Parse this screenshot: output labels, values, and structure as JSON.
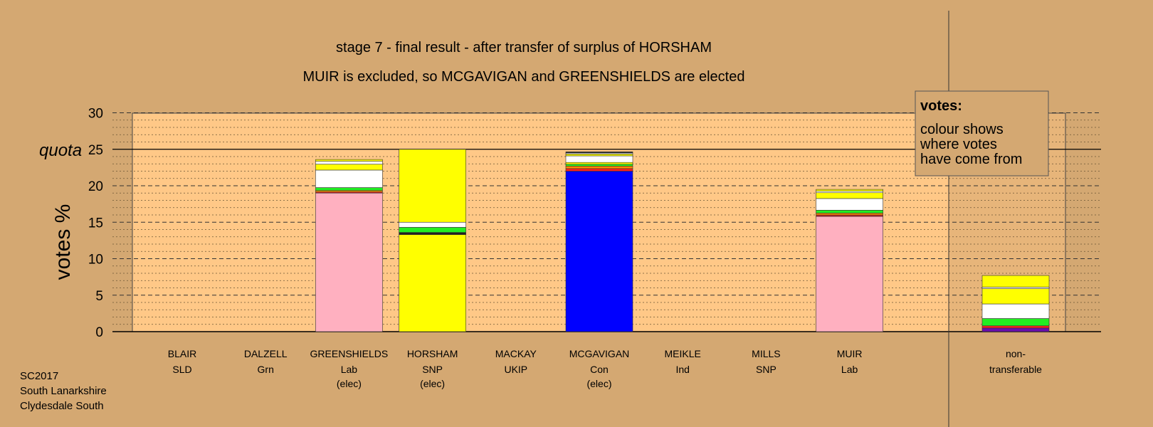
{
  "chart_data": {
    "type": "bar",
    "title": "stage 7 - final result - after transfer of surplus of HORSHAM",
    "subtitle": "MUIR is excluded, so MCGAVIGAN and GREENSHIELDS are elected",
    "ylabel": "votes %",
    "ylim": [
      0,
      30
    ],
    "yticks": [
      0,
      5,
      10,
      15,
      20,
      25,
      30
    ],
    "quota": 25,
    "quota_label": "quota",
    "grid": true,
    "legend_box": {
      "title": "votes:",
      "lines": [
        "colour shows",
        "where votes",
        "have come from"
      ]
    },
    "categories": [
      {
        "name": "BLAIR",
        "party": "SLD",
        "note": "",
        "segments": []
      },
      {
        "name": "DALZELL",
        "party": "Grn",
        "note": "",
        "segments": []
      },
      {
        "name": "GREENSHIELDS",
        "party": "Lab",
        "note": "(elec)",
        "segments": [
          {
            "color": "#ffb0c0",
            "value": 19.0
          },
          {
            "color": "#cc2020",
            "value": 0.15
          },
          {
            "color": "#ff8800",
            "value": 0.2
          },
          {
            "color": "#22ee22",
            "value": 0.4
          },
          {
            "color": "#ffffff",
            "value": 2.4
          },
          {
            "color": "#ffff00",
            "value": 0.8
          },
          {
            "color": "#ffffff",
            "value": 0.4
          },
          {
            "color": "#ffff00",
            "value": 0.25
          }
        ]
      },
      {
        "name": "HORSHAM",
        "party": "SNP",
        "note": "(elec)",
        "segments": [
          {
            "color": "#ffff00",
            "value": 13.3
          },
          {
            "color": "#222222",
            "value": 0.3
          },
          {
            "color": "#22ee22",
            "value": 0.7
          },
          {
            "color": "#ffffff",
            "value": 0.7
          },
          {
            "color": "#ffff00",
            "value": 10.0
          }
        ]
      },
      {
        "name": "MACKAY",
        "party": "UKIP",
        "note": "",
        "segments": []
      },
      {
        "name": "MCGAVIGAN",
        "party": "Con",
        "note": "(elec)",
        "segments": [
          {
            "color": "#0000ff",
            "value": 22.0
          },
          {
            "color": "#ff2020",
            "value": 0.35
          },
          {
            "color": "#ff8800",
            "value": 0.35
          },
          {
            "color": "#22ee22",
            "value": 0.25
          },
          {
            "color": "#ffff00",
            "value": 0.25
          },
          {
            "color": "#ffffff",
            "value": 0.9
          },
          {
            "color": "#ffff00",
            "value": 0.25
          },
          {
            "color": "#ffffff",
            "value": 0.15
          },
          {
            "color": "#222222",
            "value": 0.15
          }
        ]
      },
      {
        "name": "MEIKLE",
        "party": "Ind",
        "note": "",
        "segments": []
      },
      {
        "name": "MILLS",
        "party": "SNP",
        "note": "",
        "segments": []
      },
      {
        "name": "MUIR",
        "party": "Lab",
        "note": "",
        "segments": [
          {
            "color": "#ffb0c0",
            "value": 15.8
          },
          {
            "color": "#cc2020",
            "value": 0.2
          },
          {
            "color": "#ff8800",
            "value": 0.25
          },
          {
            "color": "#22ee22",
            "value": 0.4
          },
          {
            "color": "#ffffff",
            "value": 1.6
          },
          {
            "color": "#ffff00",
            "value": 0.8
          },
          {
            "color": "#ffffff",
            "value": 0.2
          },
          {
            "color": "#ffff00",
            "value": 0.25
          }
        ]
      }
    ],
    "nontransferable": {
      "label_line1": "non-",
      "label_line2": "transferable",
      "segments": [
        {
          "color": "#6a0dad",
          "value": 0.5
        },
        {
          "color": "#ff2020",
          "value": 0.3
        },
        {
          "color": "#22ee22",
          "value": 1.0
        },
        {
          "color": "#ffffff",
          "value": 2.0
        },
        {
          "color": "#ffff00",
          "value": 2.1
        },
        {
          "color": "#ffffff",
          "value": 0.2
        },
        {
          "color": "#ffff00",
          "value": 1.6
        }
      ]
    }
  },
  "footer": {
    "line1": "SC2017",
    "line2": "South Lanarkshire",
    "line3": "Clydesdale South"
  },
  "colors": {
    "background": "#d4a872",
    "plot_area": "#ffc887",
    "plot_dots": "#d9a670"
  }
}
